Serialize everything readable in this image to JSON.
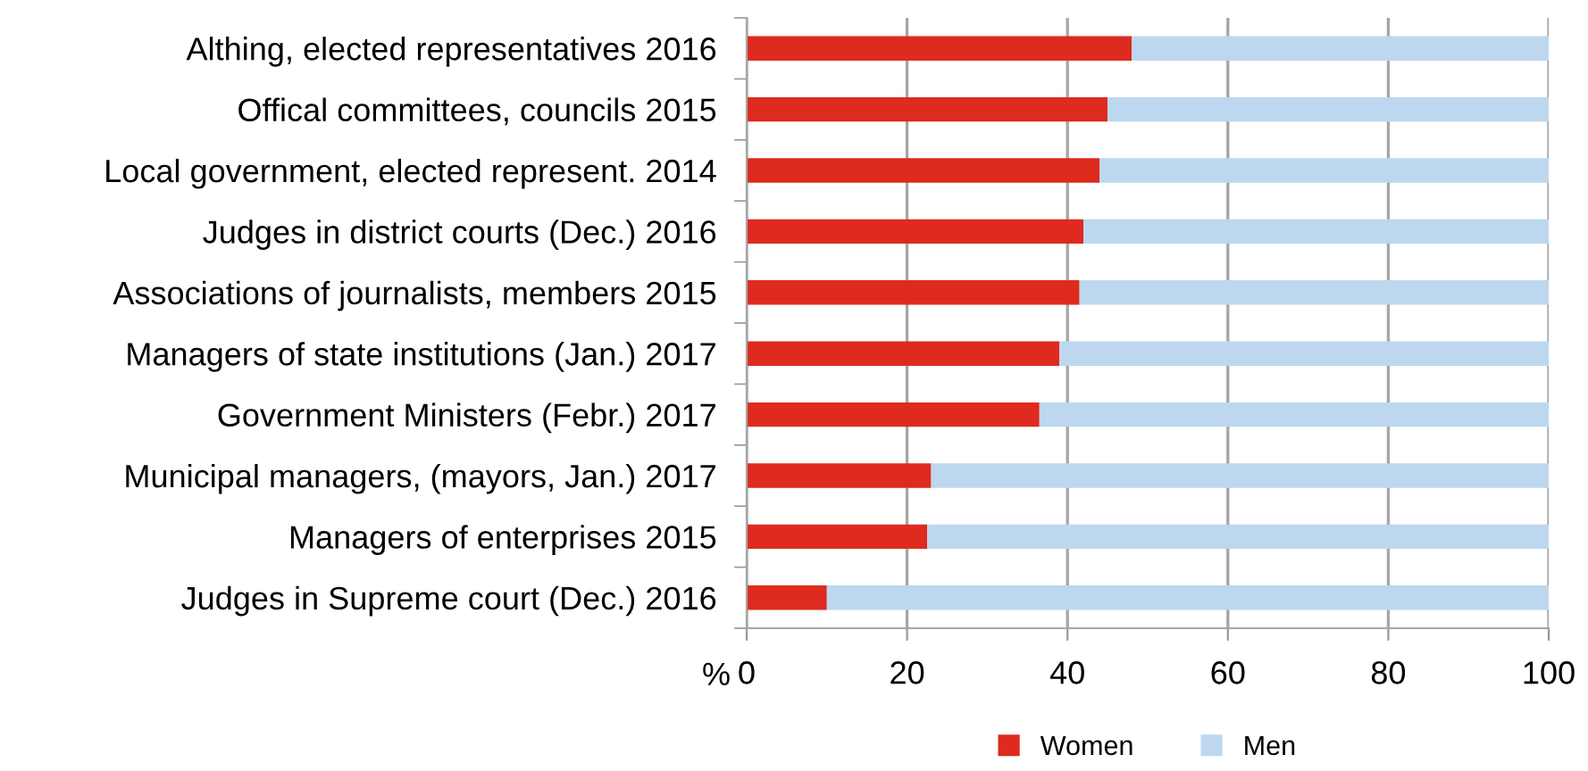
{
  "chart_data": {
    "type": "bar",
    "orientation": "horizontal",
    "stacked": true,
    "xlabel": "%",
    "categories": [
      "Althing, elected representatives 2016",
      "Offical committees, councils 2015",
      "Local government, elected represent. 2014",
      "Judges in district courts (Dec.) 2016",
      "Associations of journalists, members 2015",
      "Managers of state institutions (Jan.) 2017",
      "Government Ministers (Febr.) 2017",
      "Municipal managers, (mayors, Jan.) 2017",
      "Managers of enterprises 2015",
      "Judges in Supreme court (Dec.) 2016"
    ],
    "series": [
      {
        "name": "Women",
        "color": "#de2a1f",
        "values": [
          48,
          45,
          44,
          42,
          41.5,
          39,
          36.5,
          23,
          22.5,
          10
        ]
      },
      {
        "name": "Men",
        "color": "#bdd7ee",
        "values": [
          52,
          55,
          56,
          58,
          58.5,
          61,
          63.5,
          77,
          77.5,
          90
        ]
      }
    ],
    "xlim": [
      0,
      100
    ],
    "xticks": [
      0,
      20,
      40,
      60,
      80,
      100
    ],
    "grid": "x",
    "legend": "bottom"
  }
}
